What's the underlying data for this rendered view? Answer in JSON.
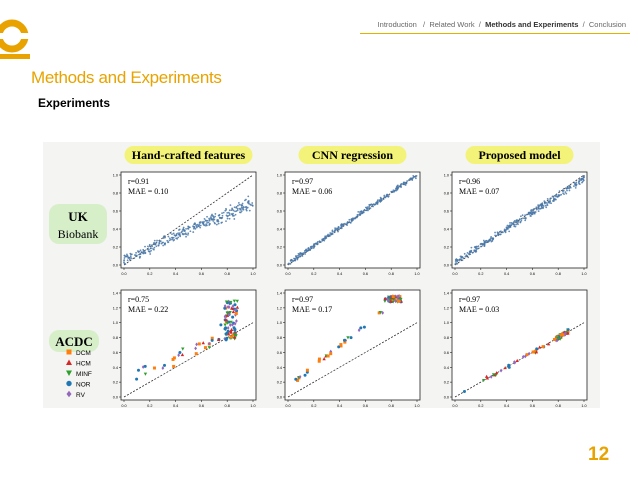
{
  "slide": {
    "breadcrumb": {
      "items": [
        "Introduction",
        "Related Work",
        "Methods and Experiments",
        "Conclusion"
      ],
      "current_index": 2,
      "separator": "/"
    },
    "title": "Methods and Experiments",
    "subtitle": "Experiments",
    "page_number": "12",
    "accent_color": "#e8a300"
  },
  "figure": {
    "columns": [
      "Hand-crafted features",
      "CNN regression",
      "Proposed model"
    ],
    "rows": [
      "UK Biobank",
      "ACDC"
    ],
    "row_label_lines": [
      [
        "UK",
        "Biobank"
      ],
      [
        "ACDC"
      ]
    ],
    "stats": [
      [
        [
          "r=0.91",
          "MAE = 0.10"
        ],
        [
          "r=0.97",
          "MAE = 0.06"
        ],
        [
          "r=0.96",
          "MAE = 0.07"
        ]
      ],
      [
        [
          "r=0.75",
          "MAE = 0.22"
        ],
        [
          "r=0.97",
          "MAE = 0.17"
        ],
        [
          "r=0.97",
          "MAE = 0.03"
        ]
      ]
    ],
    "legend": [
      {
        "label": "DCM",
        "color": "#ff7f0e",
        "marker": "square"
      },
      {
        "label": "HCM",
        "color": "#d62728",
        "marker": "triangle-up"
      },
      {
        "label": "MINF",
        "color": "#2ca02c",
        "marker": "triangle-down"
      },
      {
        "label": "NOR",
        "color": "#1f77b4",
        "marker": "circle"
      },
      {
        "label": "RV",
        "color": "#9467bd",
        "marker": "diamond"
      }
    ],
    "axes": {
      "top_x_ticks": [
        "0.0",
        "0.2",
        "0.4",
        "0.6",
        "0.8",
        "1.0"
      ],
      "top_y_ticks": [
        "0.0",
        "0.2",
        "0.4",
        "0.6",
        "0.8",
        "1.0"
      ],
      "bottom_x_ticks": [
        "0.0",
        "0.2",
        "0.4",
        "0.6",
        "0.8",
        "1.0"
      ],
      "bottom_y_ticks": [
        "0.0",
        "0.2",
        "0.4",
        "0.6",
        "0.8",
        "1.0",
        "1.2",
        "1.4"
      ],
      "top_ylim": [
        0,
        1
      ],
      "bottom_ylim": [
        0,
        1.4
      ]
    },
    "scatter_color": "#4a78a8",
    "title_bg": "#f3f37a",
    "row_label_bg": "#d6efc9"
  }
}
